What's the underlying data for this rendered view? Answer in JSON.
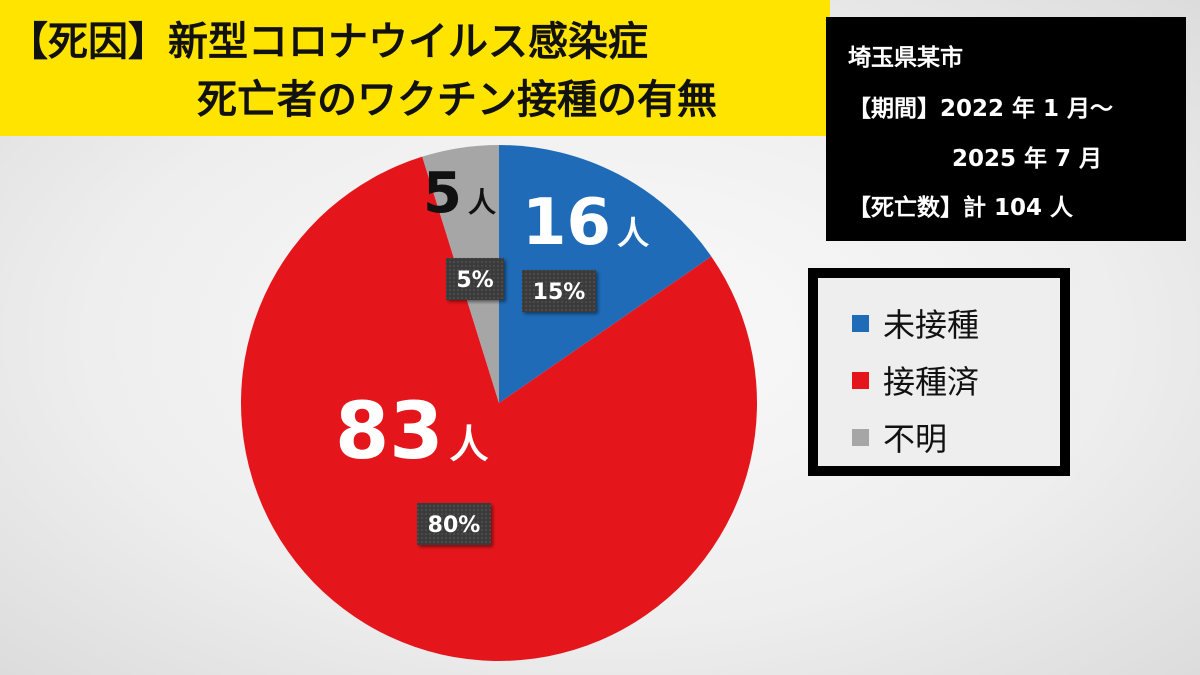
{
  "title": {
    "line1": "【死因】新型コロナウイルス感染症",
    "line2": "死亡者のワクチン接種の有無"
  },
  "info": {
    "city": "埼玉県某市",
    "period_line1": "【期間】2022 年 1 月～",
    "period_line2": "2025 年 7 月",
    "deaths": "【死亡数】計 104 人"
  },
  "colors": {
    "unvaccinated": "#1f6bb8",
    "vaccinated": "#e4161c",
    "unknown": "#a6a6a6",
    "title_bg": "#ffe400"
  },
  "chart_data": {
    "type": "pie",
    "title": "",
    "unit": "人",
    "slices": [
      {
        "name": "未接種",
        "count": 16,
        "count_text": "16",
        "percent_text": "15%",
        "color": "#1f6bb8"
      },
      {
        "name": "接種済",
        "count": 83,
        "count_text": "83",
        "percent_text": "80%",
        "color": "#e4161c"
      },
      {
        "name": "不明",
        "count": 5,
        "count_text": "5",
        "percent_text": "5%",
        "color": "#a6a6a6"
      }
    ],
    "legend_position": "right"
  },
  "legend": {
    "items": [
      {
        "label": "未接種",
        "color": "#1f6bb8"
      },
      {
        "label": "接種済",
        "color": "#e4161c"
      },
      {
        "label": "不明",
        "color": "#a6a6a6"
      }
    ]
  }
}
